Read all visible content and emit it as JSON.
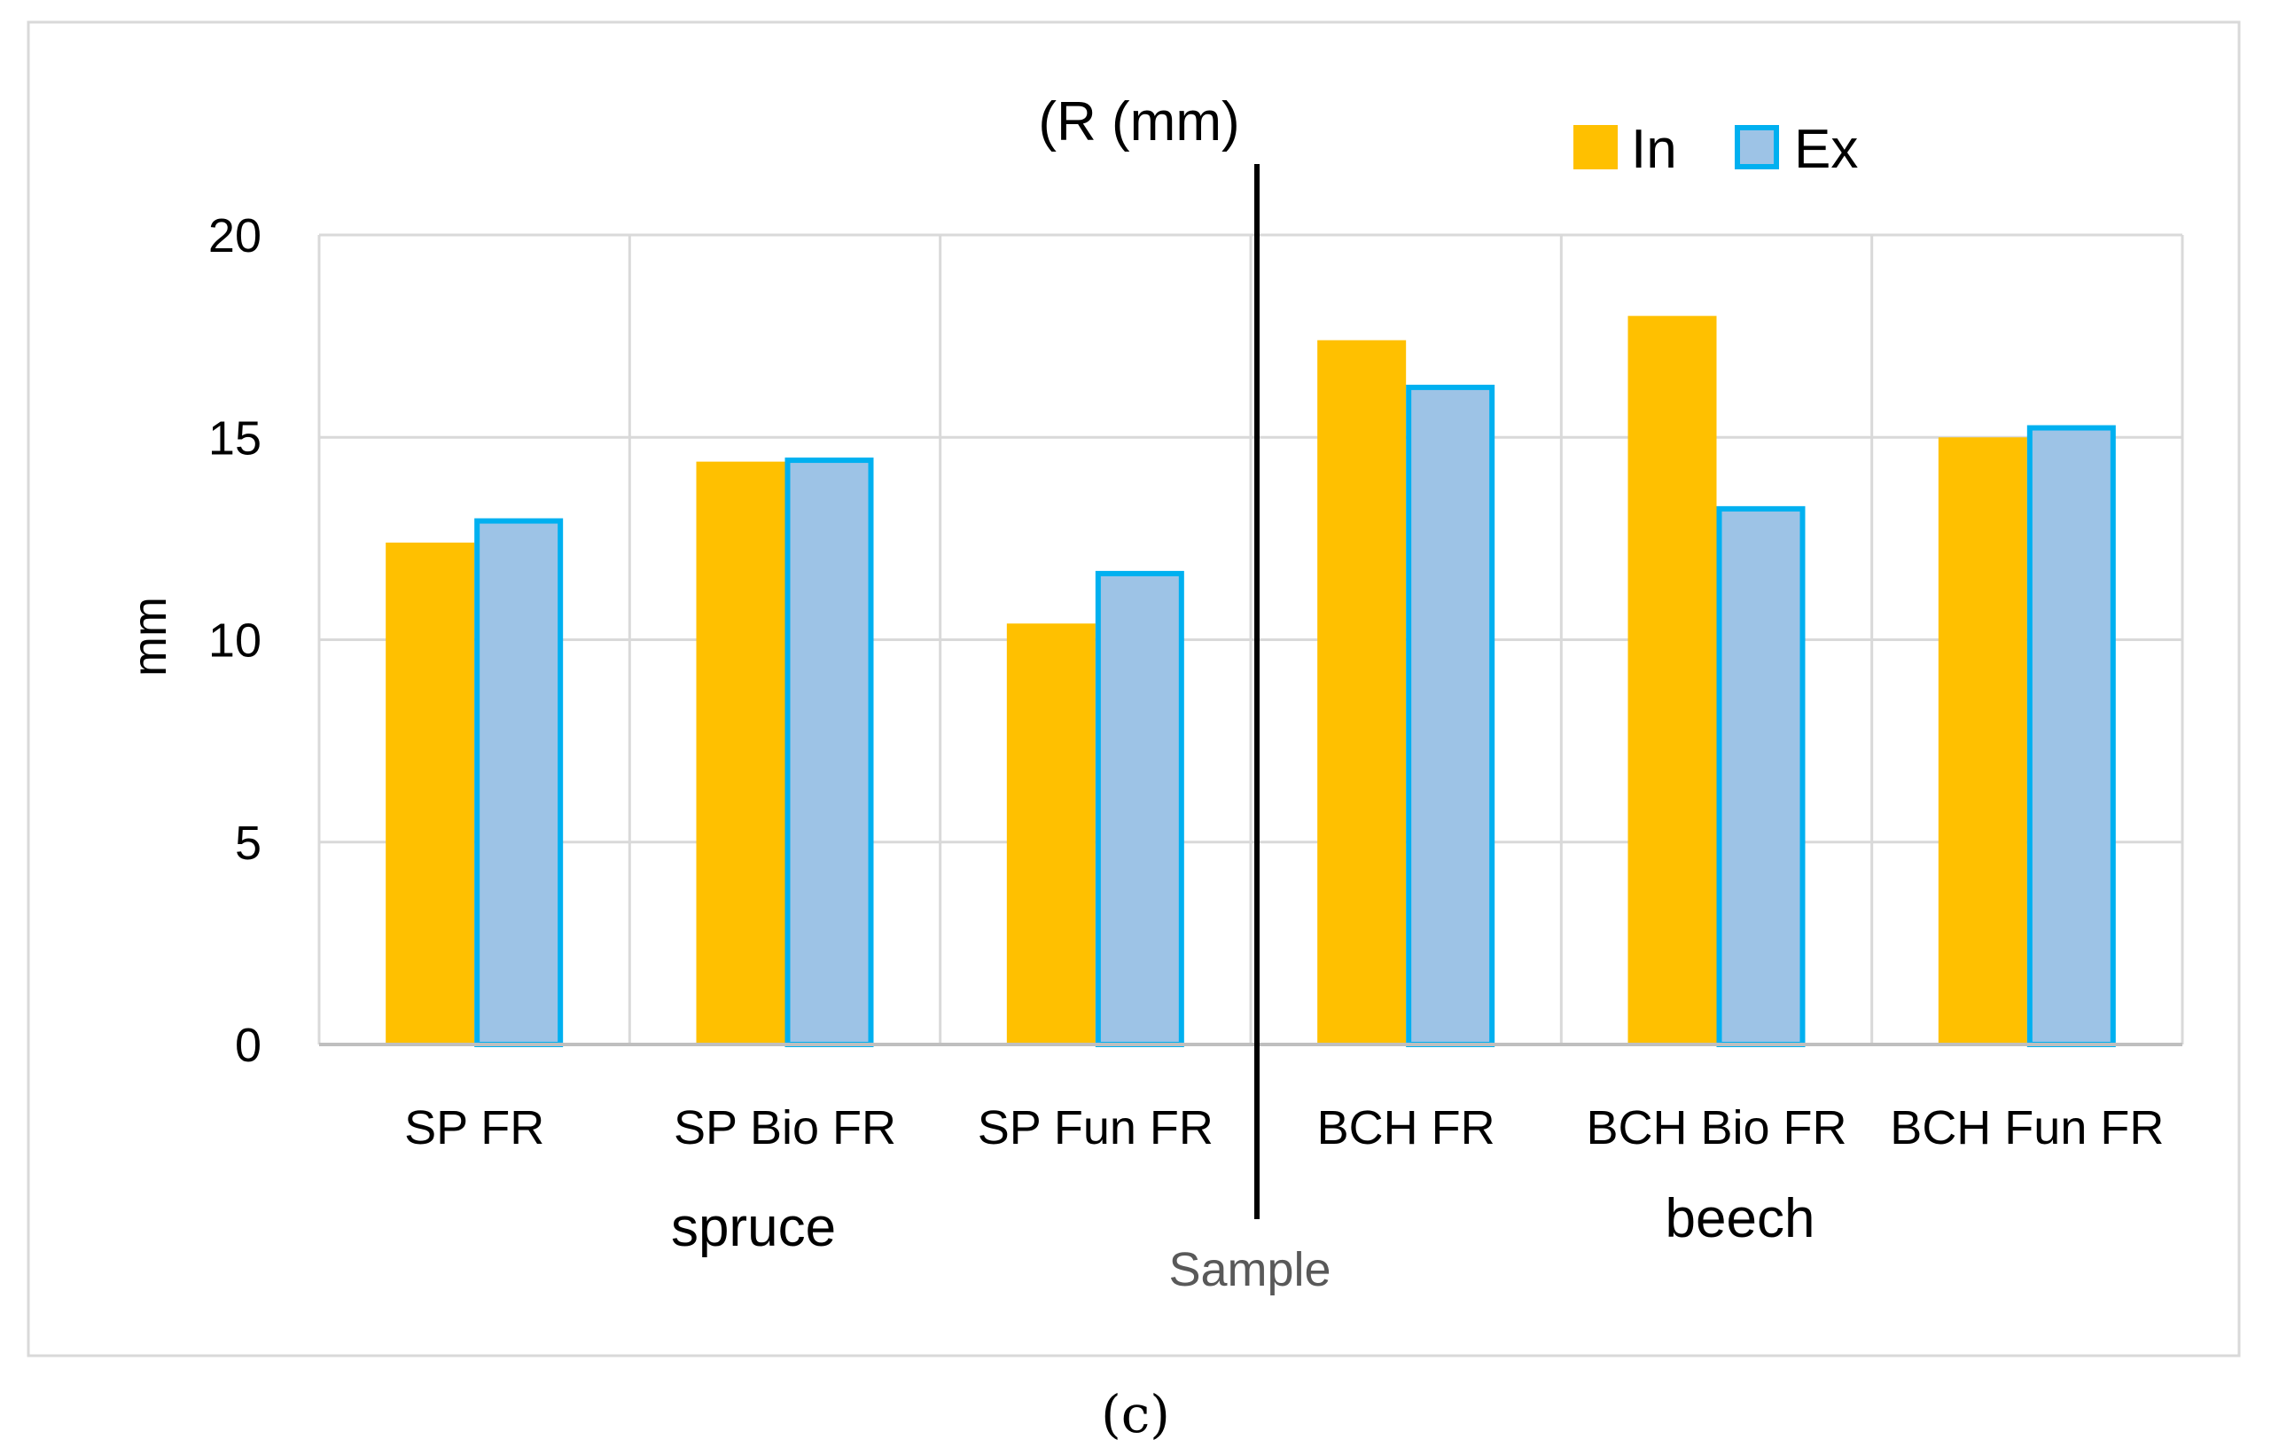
{
  "chart_data": {
    "type": "bar",
    "title": "(R (mm)",
    "xlabel": "Sample",
    "ylabel": "mm",
    "ylim": [
      0,
      20
    ],
    "yticks": [
      0,
      5,
      10,
      15,
      20
    ],
    "grid": true,
    "legend_position": "top-right",
    "categories": [
      "SP FR",
      "SP Bio FR",
      "SP Fun FR",
      "BCH FR",
      "BCH Bio FR",
      "BCH Fun FR"
    ],
    "series": [
      {
        "name": "In",
        "values": [
          12.4,
          14.4,
          10.4,
          17.4,
          18.0,
          15.0
        ]
      },
      {
        "name": "Ex",
        "values": [
          13.0,
          14.5,
          11.7,
          16.3,
          13.3,
          15.3
        ]
      }
    ],
    "groups": [
      {
        "label": "spruce",
        "categories": [
          0,
          1,
          2
        ]
      },
      {
        "label": "beech",
        "categories": [
          3,
          4,
          5
        ]
      }
    ],
    "colors": {
      "In": "#ffc000",
      "Ex_fill": "#9dc3e6",
      "Ex_border": "#00b0f0",
      "grid": "#d9d9d9",
      "axis": "#bfbfbf",
      "text": "#000000",
      "xlabel_text": "#595959",
      "frame": "#d9d9d9"
    }
  },
  "caption": "(c)"
}
